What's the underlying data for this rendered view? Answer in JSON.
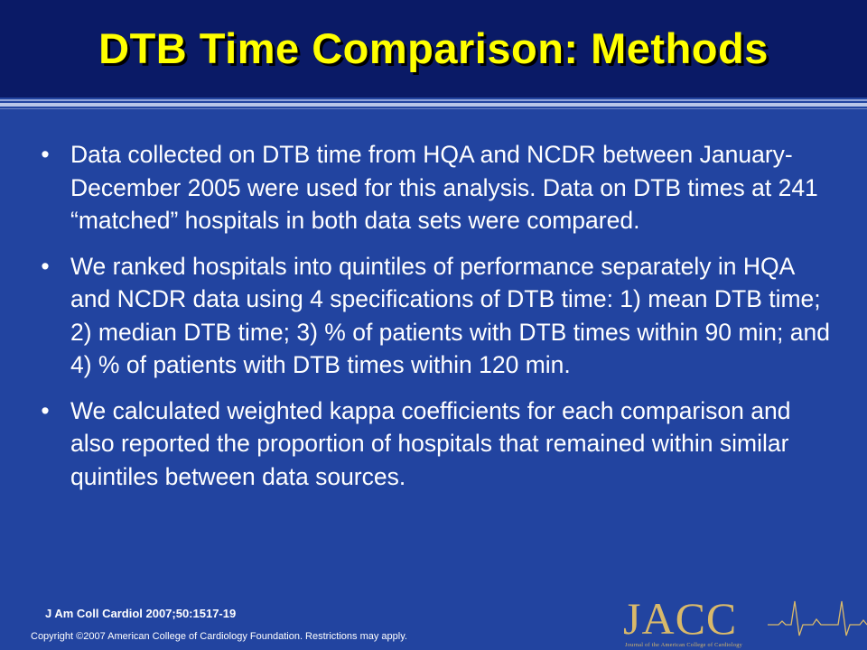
{
  "title": "DTB Time Comparison: Methods",
  "bullets": [
    "Data collected on DTB time from HQA and NCDR between January-December 2005 were used for this analysis. Data on DTB times at 241 “matched” hospitals in both data sets were compared.",
    "We ranked hospitals into quintiles of performance separately in HQA and NCDR data using 4 specifications of DTB time: 1) mean DTB time; 2) median DTB time; 3) % of patients with DTB times within 90 min; and 4) % of patients with DTB times within 120 min.",
    "We calculated weighted kappa coefficients for each comparison and also reported the proportion of hospitals that remained within similar quintiles between data sources."
  ],
  "bullet_symbol": "•",
  "citation": "J Am Coll Cardiol 2007;50:1517-19",
  "copyright": "Copyright ©2007 American College of Cardiology Foundation. Restrictions may apply.",
  "logo": {
    "text": "JACC",
    "subtitle": "Journal of the American College of Cardiology"
  },
  "colors": {
    "background": "#2244a0",
    "header": "#0a1a66",
    "title": "#ffff00",
    "body_text": "#ffffff",
    "logo": "#d9b96a"
  }
}
